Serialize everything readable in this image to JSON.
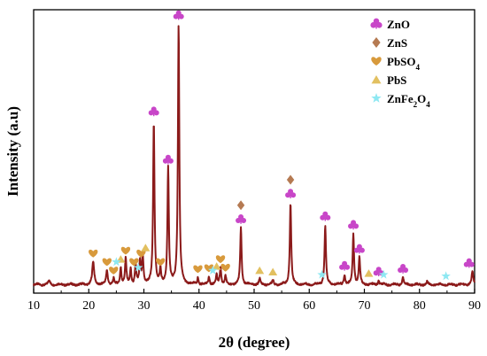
{
  "chart_data": {
    "type": "line",
    "xlabel": "2θ (degree)",
    "ylabel": "Intensity (a.u)",
    "xlim": [
      10,
      90
    ],
    "x_ticks": [
      10,
      20,
      30,
      40,
      50,
      60,
      70,
      80,
      90
    ],
    "y_ticks_shown": false,
    "grid": false,
    "legend_position": "top-right",
    "line_color": "#8b1a1a",
    "baseline": 3,
    "ylim": [
      0,
      100
    ],
    "peaks": [
      {
        "x": 12.8,
        "y": 4.5,
        "w": 0.25
      },
      {
        "x": 20.8,
        "y": 11,
        "w": 0.3
      },
      {
        "x": 23.3,
        "y": 8,
        "w": 0.25
      },
      {
        "x": 24.5,
        "y": 5,
        "w": 0.2
      },
      {
        "x": 25.8,
        "y": 9,
        "w": 0.22
      },
      {
        "x": 26.7,
        "y": 12,
        "w": 0.22
      },
      {
        "x": 27.6,
        "y": 8.5,
        "w": 0.2
      },
      {
        "x": 28.5,
        "y": 10,
        "w": 0.2
      },
      {
        "x": 29.3,
        "y": 11,
        "w": 0.22
      },
      {
        "x": 29.8,
        "y": 13,
        "w": 0.22
      },
      {
        "x": 31.8,
        "y": 61,
        "w": 0.22
      },
      {
        "x": 33.0,
        "y": 8,
        "w": 0.2
      },
      {
        "x": 34.4,
        "y": 44,
        "w": 0.22
      },
      {
        "x": 36.3,
        "y": 95,
        "w": 0.22
      },
      {
        "x": 39.8,
        "y": 5.5,
        "w": 0.2
      },
      {
        "x": 41.8,
        "y": 5.8,
        "w": 0.2
      },
      {
        "x": 43.2,
        "y": 6.5,
        "w": 0.2
      },
      {
        "x": 43.9,
        "y": 9,
        "w": 0.22
      },
      {
        "x": 44.8,
        "y": 6,
        "w": 0.2
      },
      {
        "x": 47.6,
        "y": 23,
        "w": 0.22
      },
      {
        "x": 51.0,
        "y": 5,
        "w": 0.22
      },
      {
        "x": 53.4,
        "y": 4.5,
        "w": 0.22
      },
      {
        "x": 56.6,
        "y": 32,
        "w": 0.22
      },
      {
        "x": 62.9,
        "y": 24,
        "w": 0.22
      },
      {
        "x": 66.4,
        "y": 6.5,
        "w": 0.22
      },
      {
        "x": 68.0,
        "y": 21,
        "w": 0.22
      },
      {
        "x": 69.1,
        "y": 12.5,
        "w": 0.22
      },
      {
        "x": 72.6,
        "y": 4.5,
        "w": 0.22
      },
      {
        "x": 77.0,
        "y": 5.5,
        "w": 0.22
      },
      {
        "x": 81.4,
        "y": 4,
        "w": 0.22
      },
      {
        "x": 89.6,
        "y": 7.5,
        "w": 0.25
      }
    ],
    "legend": [
      {
        "label": "ZnO",
        "color": "#c846c8",
        "symbol": "club"
      },
      {
        "label": "ZnS",
        "color": "#b57a52",
        "symbol": "diamond"
      },
      {
        "label": "PbSO4",
        "color": "#d89a3c",
        "symbol": "heart"
      },
      {
        "label": "PbS",
        "color": "#e2c060",
        "symbol": "triangle"
      },
      {
        "label": "ZnFe2O4",
        "color": "#8ee8f2",
        "symbol": "star"
      }
    ],
    "markers": [
      {
        "phase": "ZnO",
        "x": 31.8,
        "y": 64
      },
      {
        "phase": "ZnO",
        "x": 34.4,
        "y": 47
      },
      {
        "phase": "ZnO",
        "x": 36.3,
        "y": 98
      },
      {
        "phase": "ZnO",
        "x": 47.6,
        "y": 26
      },
      {
        "phase": "ZnS",
        "x": 47.6,
        "y": 31
      },
      {
        "phase": "ZnO",
        "x": 56.6,
        "y": 35
      },
      {
        "phase": "ZnS",
        "x": 56.6,
        "y": 40
      },
      {
        "phase": "ZnO",
        "x": 62.9,
        "y": 27
      },
      {
        "phase": "ZnO",
        "x": 66.4,
        "y": 9.5
      },
      {
        "phase": "ZnO",
        "x": 68.0,
        "y": 24
      },
      {
        "phase": "ZnO",
        "x": 69.1,
        "y": 15.5
      },
      {
        "phase": "ZnO",
        "x": 72.6,
        "y": 7.5
      },
      {
        "phase": "ZnO",
        "x": 77.0,
        "y": 8.5
      },
      {
        "phase": "ZnO",
        "x": 89.0,
        "y": 10.5
      },
      {
        "phase": "PbSO4",
        "x": 20.8,
        "y": 14
      },
      {
        "phase": "PbSO4",
        "x": 23.3,
        "y": 11
      },
      {
        "phase": "PbSO4",
        "x": 24.5,
        "y": 8
      },
      {
        "phase": "PbSO4",
        "x": 26.7,
        "y": 15
      },
      {
        "phase": "PbSO4",
        "x": 28.2,
        "y": 11
      },
      {
        "phase": "PbSO4",
        "x": 29.5,
        "y": 14
      },
      {
        "phase": "PbSO4",
        "x": 33.0,
        "y": 11
      },
      {
        "phase": "PbSO4",
        "x": 39.8,
        "y": 8.5
      },
      {
        "phase": "PbSO4",
        "x": 41.8,
        "y": 8.8
      },
      {
        "phase": "PbSO4",
        "x": 43.9,
        "y": 12
      },
      {
        "phase": "PbSO4",
        "x": 44.8,
        "y": 9
      },
      {
        "phase": "PbS",
        "x": 25.8,
        "y": 12
      },
      {
        "phase": "PbS",
        "x": 30.3,
        "y": 16
      },
      {
        "phase": "PbS",
        "x": 43.2,
        "y": 9.5
      },
      {
        "phase": "PbS",
        "x": 51.0,
        "y": 8
      },
      {
        "phase": "PbS",
        "x": 53.4,
        "y": 7.5
      },
      {
        "phase": "PbS",
        "x": 70.8,
        "y": 7
      },
      {
        "phase": "ZnFe2O4",
        "x": 25.0,
        "y": 11
      },
      {
        "phase": "ZnFe2O4",
        "x": 29.0,
        "y": 9
      },
      {
        "phase": "ZnFe2O4",
        "x": 42.5,
        "y": 8
      },
      {
        "phase": "ZnFe2O4",
        "x": 62.3,
        "y": 6.5
      },
      {
        "phase": "ZnFe2O4",
        "x": 73.5,
        "y": 6.5
      },
      {
        "phase": "ZnFe2O4",
        "x": 84.8,
        "y": 6
      }
    ]
  }
}
